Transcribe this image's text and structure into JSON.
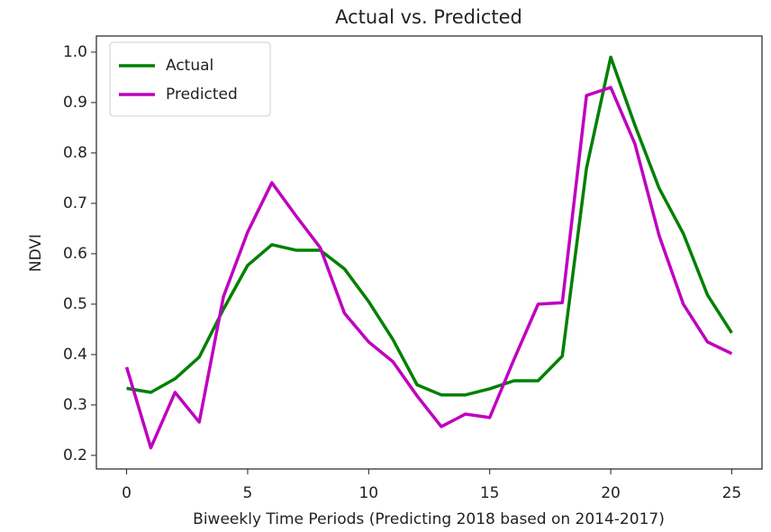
{
  "chart_data": {
    "type": "line",
    "title": "Actual vs. Predicted",
    "x_label": "Biweekly Time Periods (Predicting 2018 based on 2014-2017)",
    "y_label": "NDVI",
    "x": [
      0,
      1,
      2,
      3,
      4,
      5,
      6,
      7,
      8,
      9,
      10,
      11,
      12,
      13,
      14,
      15,
      16,
      17,
      18,
      19,
      20,
      21,
      22,
      23,
      24,
      25
    ],
    "series": [
      {
        "name": "Actual",
        "color": "#008000",
        "values": [
          0.333,
          0.325,
          0.352,
          0.395,
          0.49,
          0.577,
          0.618,
          0.607,
          0.607,
          0.57,
          0.505,
          0.43,
          0.34,
          0.32,
          0.32,
          0.332,
          0.348,
          0.348,
          0.397,
          0.77,
          0.99,
          0.855,
          0.73,
          0.64,
          0.518,
          0.443
        ]
      },
      {
        "name": "Predicted",
        "color": "#bf00bf",
        "values": [
          0.375,
          0.215,
          0.325,
          0.266,
          0.515,
          0.643,
          0.741,
          0.675,
          0.612,
          0.482,
          0.425,
          0.386,
          0.318,
          0.257,
          0.282,
          0.275,
          0.39,
          0.5,
          0.503,
          0.914,
          0.93,
          0.818,
          0.636,
          0.5,
          0.425,
          0.402
        ]
      }
    ],
    "xlim": [
      -1.25,
      26.25
    ],
    "xticks": [
      0,
      5,
      10,
      15,
      20,
      25
    ],
    "ylim": [
      0.173,
      1.032
    ],
    "yticks": [
      0.2,
      0.3,
      0.4,
      0.5,
      0.6,
      0.7,
      0.8,
      0.9,
      {
        "value": 1,
        "label": "1.0"
      }
    ],
    "legend": "upper left"
  }
}
